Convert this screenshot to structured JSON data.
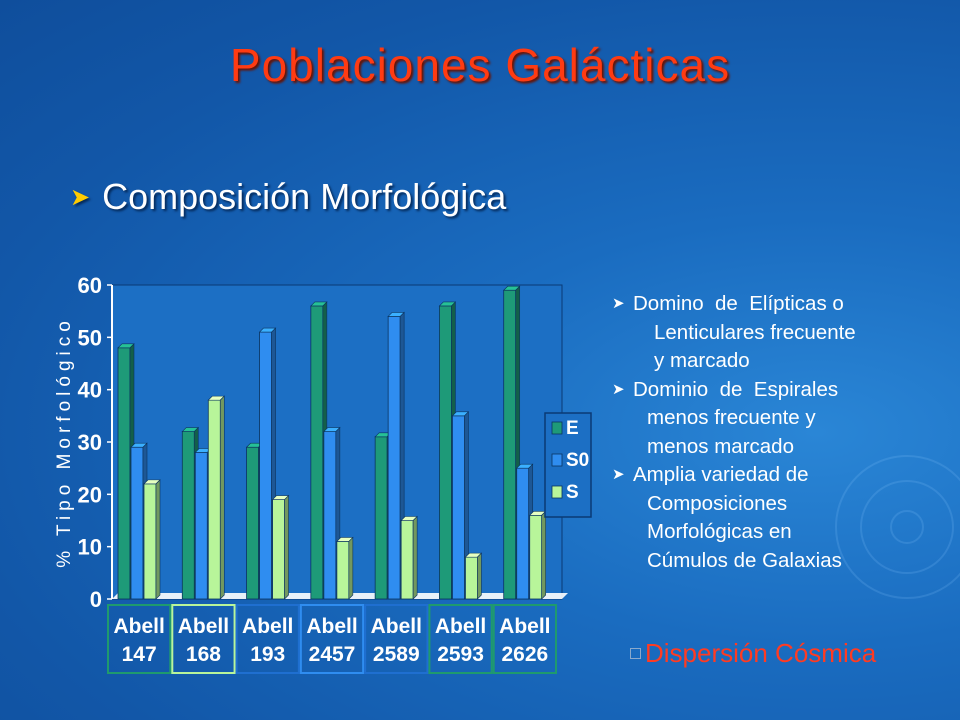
{
  "slide": {
    "title": "Poblaciones  Galácticas",
    "subtitle": "Composición Morfológica",
    "notes": [
      {
        "lines": [
          "Domino  de  Elípticas o",
          "Lenticulares frecuente",
          "y marcado"
        ]
      },
      {
        "lines": [
          "Dominio  de  Espirales",
          "menos frecuente y",
          "menos marcado"
        ]
      },
      {
        "lines": [
          "Amplia variedad de",
          "Composiciones",
          "Morfológicas en",
          "Cúmulos de Galaxias"
        ]
      }
    ],
    "footer": "Dispersión Cósmica"
  },
  "colors": {
    "title": "#ff3b12",
    "series_E": "#1e9a78",
    "series_S0": "#2f8df0",
    "series_S": "#b8f59a",
    "arrow": "#ffcc00"
  },
  "chart_data": {
    "type": "bar",
    "categories": [
      "Abell 147",
      "Abell 168",
      "Abell 193",
      "Abell 2457",
      "Abell 2589",
      "Abell 2593",
      "Abell 2626"
    ],
    "series": [
      {
        "name": "E",
        "values": [
          48,
          32,
          29,
          56,
          31,
          56,
          59
        ]
      },
      {
        "name": "S0",
        "values": [
          29,
          28,
          51,
          32,
          54,
          35,
          25
        ]
      },
      {
        "name": "S",
        "values": [
          22,
          38,
          19,
          11,
          15,
          8,
          16
        ]
      }
    ],
    "ylabel": "% Tipo Morfológico",
    "ylim": [
      0,
      60
    ],
    "yticks": [
      "0",
      "10",
      "20",
      "30",
      "40",
      "50",
      "60"
    ],
    "legend": "right"
  }
}
